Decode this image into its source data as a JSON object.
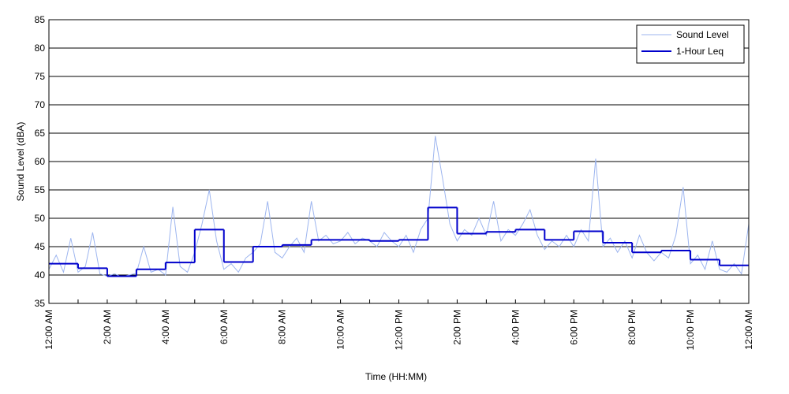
{
  "chart_data": {
    "type": "line",
    "xlabel": "Time (HH:MM)",
    "ylabel": "Sound Level (dBA)",
    "xlim": [
      0,
      24
    ],
    "ylim": [
      35,
      85
    ],
    "yticks": [
      35,
      40,
      45,
      50,
      55,
      60,
      65,
      70,
      75,
      80,
      85
    ],
    "xticks": [
      {
        "value": 0,
        "label": "12:00 AM"
      },
      {
        "value": 2,
        "label": "2:00 AM"
      },
      {
        "value": 4,
        "label": "4:00 AM"
      },
      {
        "value": 6,
        "label": "6:00 AM"
      },
      {
        "value": 8,
        "label": "8:00 AM"
      },
      {
        "value": 10,
        "label": "10:00 AM"
      },
      {
        "value": 12,
        "label": "12:00 PM"
      },
      {
        "value": 14,
        "label": "2:00 PM"
      },
      {
        "value": 16,
        "label": "4:00 PM"
      },
      {
        "value": 18,
        "label": "6:00 PM"
      },
      {
        "value": 20,
        "label": "8:00 PM"
      },
      {
        "value": 22,
        "label": "10:00 PM"
      },
      {
        "value": 24,
        "label": "12:00 AM"
      }
    ],
    "xminorticks": [
      1,
      3,
      5,
      7,
      9,
      11,
      13,
      15,
      17,
      19,
      21,
      23
    ],
    "grid": true,
    "legend": "top-right",
    "series": [
      {
        "name": "Sound Level",
        "color": "#9db5ef",
        "style": "line",
        "x": [
          0,
          0.25,
          0.5,
          0.75,
          1,
          1.25,
          1.5,
          1.75,
          2,
          2.25,
          2.5,
          2.75,
          3,
          3.25,
          3.5,
          3.75,
          4,
          4.25,
          4.5,
          4.75,
          5,
          5.25,
          5.5,
          5.75,
          6,
          6.25,
          6.5,
          6.75,
          7,
          7.25,
          7.5,
          7.75,
          8,
          8.25,
          8.5,
          8.75,
          9,
          9.25,
          9.5,
          9.75,
          10,
          10.25,
          10.5,
          10.75,
          11,
          11.25,
          11.5,
          11.75,
          12,
          12.25,
          12.5,
          12.75,
          13,
          13.25,
          13.5,
          13.75,
          14,
          14.25,
          14.5,
          14.75,
          15,
          15.25,
          15.5,
          15.75,
          16,
          16.25,
          16.5,
          16.75,
          17,
          17.25,
          17.5,
          17.75,
          18,
          18.25,
          18.5,
          18.75,
          19,
          19.25,
          19.5,
          19.75,
          20,
          20.25,
          20.5,
          20.75,
          21,
          21.25,
          21.5,
          21.75,
          22,
          22.25,
          22.5,
          22.75,
          23,
          23.25,
          23.5,
          23.75,
          24
        ],
        "values": [
          41,
          43.5,
          40.5,
          46.5,
          40.5,
          41.5,
          47.5,
          40.2,
          39.8,
          40.2,
          39.7,
          40,
          40.3,
          45,
          40.5,
          41,
          40,
          52,
          41.5,
          40.5,
          44,
          49,
          55,
          46,
          41,
          42,
          40.5,
          43,
          44,
          45.5,
          53,
          44,
          43,
          45,
          46.5,
          44,
          53,
          46,
          47,
          45.5,
          46,
          47.5,
          45.5,
          46.5,
          46,
          45,
          47.5,
          46,
          45,
          47,
          44,
          48,
          50,
          64.5,
          57,
          49,
          46,
          48,
          47,
          50,
          47,
          53,
          46,
          48,
          47,
          49,
          51.5,
          47,
          44.5,
          46,
          45,
          47,
          45,
          48,
          46,
          60.5,
          45,
          46.5,
          44,
          46,
          43,
          47,
          44,
          42.5,
          44,
          43,
          47,
          55.5,
          42,
          43.5,
          41,
          46,
          41,
          40.5,
          42,
          40.2,
          49
        ]
      },
      {
        "name": "1-Hour Leq",
        "color": "#0000cc",
        "style": "step",
        "x": [
          0,
          1,
          2,
          3,
          4,
          5,
          6,
          7,
          8,
          9,
          10,
          11,
          12,
          13,
          14,
          15,
          16,
          17,
          18,
          19,
          20,
          21,
          22,
          23
        ],
        "values": [
          42,
          41.2,
          39.8,
          41,
          42.2,
          48,
          42.3,
          45,
          45.3,
          46.2,
          46.2,
          46,
          46.2,
          51.9,
          47.3,
          47.6,
          48,
          46.2,
          47.7,
          45.7,
          44,
          44.3,
          42.7,
          41.7
        ]
      }
    ]
  }
}
